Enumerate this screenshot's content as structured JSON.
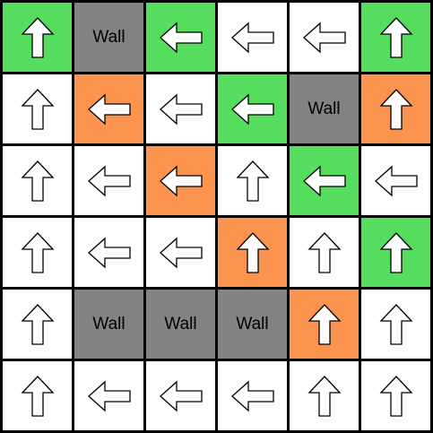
{
  "grid": {
    "rows": 6,
    "cols": 6,
    "colors": {
      "green": "#55dd5d",
      "orange": "#fc9450",
      "gray": "#838383",
      "white": "#ffffff",
      "grid_line": "#000000",
      "arrow_outline": "#000000"
    },
    "wall_label": "Wall",
    "cells": [
      [
        {
          "type": "arrow",
          "dir": "up",
          "color": "green"
        },
        {
          "type": "wall",
          "color": "gray"
        },
        {
          "type": "arrow",
          "dir": "left",
          "color": "green"
        },
        {
          "type": "arrow",
          "dir": "left",
          "color": "white"
        },
        {
          "type": "arrow",
          "dir": "left",
          "color": "white"
        },
        {
          "type": "arrow",
          "dir": "up",
          "color": "green"
        }
      ],
      [
        {
          "type": "arrow",
          "dir": "up",
          "color": "white"
        },
        {
          "type": "arrow",
          "dir": "left",
          "color": "orange"
        },
        {
          "type": "arrow",
          "dir": "left",
          "color": "white"
        },
        {
          "type": "arrow",
          "dir": "left",
          "color": "green"
        },
        {
          "type": "wall",
          "color": "gray"
        },
        {
          "type": "arrow",
          "dir": "up",
          "color": "orange"
        }
      ],
      [
        {
          "type": "arrow",
          "dir": "up",
          "color": "white"
        },
        {
          "type": "arrow",
          "dir": "left",
          "color": "white"
        },
        {
          "type": "arrow",
          "dir": "left",
          "color": "orange"
        },
        {
          "type": "arrow",
          "dir": "up",
          "color": "white"
        },
        {
          "type": "arrow",
          "dir": "left",
          "color": "green"
        },
        {
          "type": "arrow",
          "dir": "left",
          "color": "white"
        }
      ],
      [
        {
          "type": "arrow",
          "dir": "up",
          "color": "white"
        },
        {
          "type": "arrow",
          "dir": "left",
          "color": "white"
        },
        {
          "type": "arrow",
          "dir": "left",
          "color": "white"
        },
        {
          "type": "arrow",
          "dir": "up",
          "color": "orange"
        },
        {
          "type": "arrow",
          "dir": "up",
          "color": "white"
        },
        {
          "type": "arrow",
          "dir": "up",
          "color": "green"
        }
      ],
      [
        {
          "type": "arrow",
          "dir": "up",
          "color": "white"
        },
        {
          "type": "wall",
          "color": "gray"
        },
        {
          "type": "wall",
          "color": "gray"
        },
        {
          "type": "wall",
          "color": "gray"
        },
        {
          "type": "arrow",
          "dir": "up",
          "color": "orange"
        },
        {
          "type": "arrow",
          "dir": "up",
          "color": "white"
        }
      ],
      [
        {
          "type": "arrow",
          "dir": "up",
          "color": "white"
        },
        {
          "type": "arrow",
          "dir": "left",
          "color": "white"
        },
        {
          "type": "arrow",
          "dir": "left",
          "color": "white"
        },
        {
          "type": "arrow",
          "dir": "left",
          "color": "white"
        },
        {
          "type": "arrow",
          "dir": "up",
          "color": "white"
        },
        {
          "type": "arrow",
          "dir": "up",
          "color": "white"
        }
      ]
    ]
  }
}
